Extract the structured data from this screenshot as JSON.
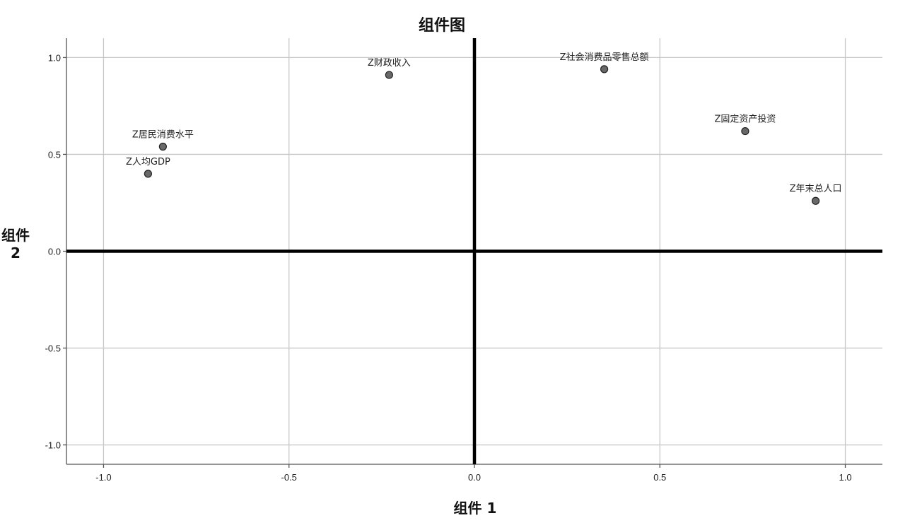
{
  "chart_data": {
    "type": "scatter",
    "title": "组件图",
    "xlabel": "组件 1",
    "ylabel": "组件 2",
    "xlim": [
      -1.1,
      1.1
    ],
    "ylim": [
      -1.1,
      1.1
    ],
    "x_ticks": [
      -1.0,
      -0.5,
      0.0,
      0.5,
      1.0
    ],
    "y_ticks": [
      -1.0,
      -0.5,
      0.0,
      0.5,
      1.0
    ],
    "x_tick_labels": [
      "-1.0",
      "-0.5",
      "0.0",
      "0.5",
      "1.0"
    ],
    "y_tick_labels": [
      "-1.0",
      "-0.5",
      "0.0",
      "0.5",
      "1.0"
    ],
    "grid": true,
    "reference_lines": {
      "x": 0.0,
      "y": 0.0
    },
    "points": [
      {
        "label": "Z财政收入",
        "x": -0.23,
        "y": 0.91
      },
      {
        "label": "Z社会消费品零售总额",
        "x": 0.35,
        "y": 0.94
      },
      {
        "label": "Z居民消费水平",
        "x": -0.84,
        "y": 0.54
      },
      {
        "label": "Z人均GDP",
        "x": -0.88,
        "y": 0.4
      },
      {
        "label": "Z固定资产投资",
        "x": 0.73,
        "y": 0.62
      },
      {
        "label": "Z年末总人口",
        "x": 0.92,
        "y": 0.26
      }
    ],
    "point_color": "#686868",
    "grid_color": "#c8c8c8",
    "reference_line_color": "#000000"
  }
}
